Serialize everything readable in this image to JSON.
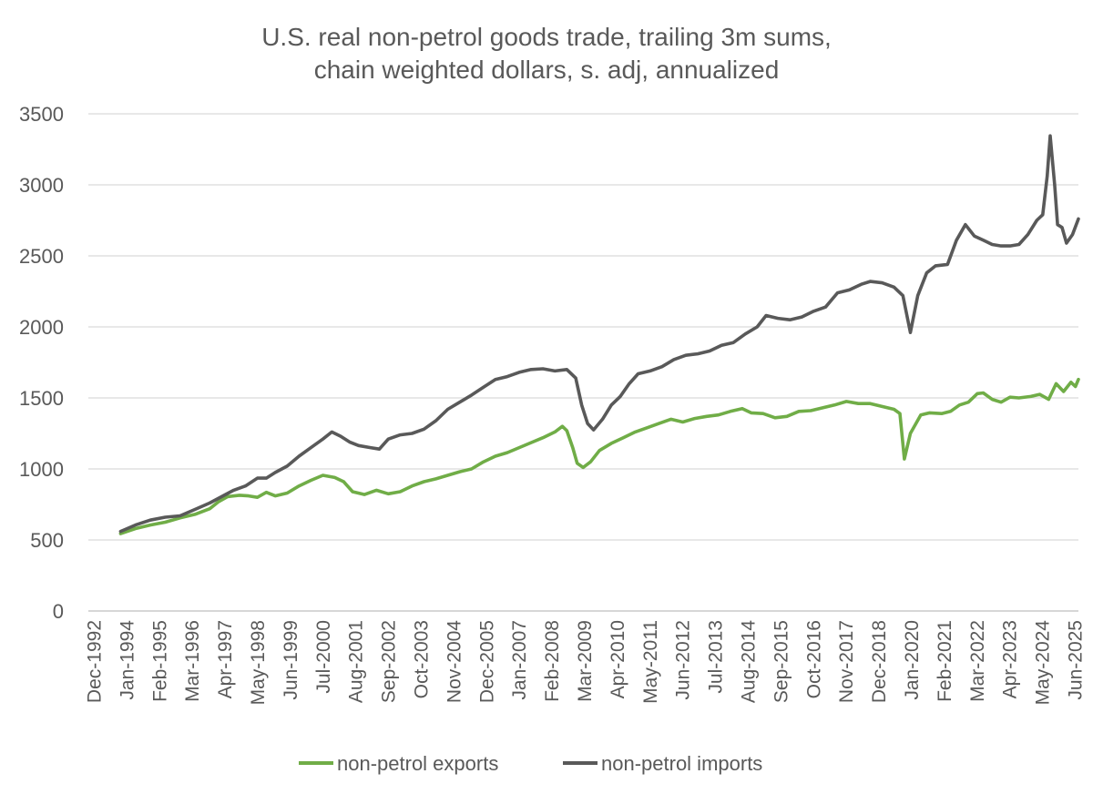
{
  "chart_data": {
    "type": "line",
    "title_lines": [
      "U.S. real non-petrol goods trade, trailing 3m sums,",
      "chain weighted dollars, s. adj, annualized"
    ],
    "xlabel": "",
    "ylabel": "",
    "ylim": [
      0,
      3500
    ],
    "yticks": [
      0,
      500,
      1000,
      1500,
      2000,
      2500,
      3000,
      3500
    ],
    "grid": true,
    "legend_position": "bottom",
    "x_tick_labels": [
      "Dec-1992",
      "Jan-1994",
      "Feb-1995",
      "Mar-1996",
      "Apr-1997",
      "May-1998",
      "Jun-1999",
      "Jul-2000",
      "Aug-2001",
      "Sep-2002",
      "Oct-2003",
      "Nov-2004",
      "Dec-2005",
      "Jan-2007",
      "Feb-2008",
      "Mar-2009",
      "Apr-2010",
      "May-2011",
      "Jun-2012",
      "Jul-2013",
      "Aug-2014",
      "Sep-2015",
      "Oct-2016",
      "Nov-2017",
      "Dec-2018",
      "Jan-2020",
      "Feb-2021",
      "Mar-2022",
      "Apr-2023",
      "May-2024",
      "Jun-2025"
    ],
    "x_range_years": [
      1992.917,
      2026.2
    ],
    "series": [
      {
        "name": "non-petrol exports",
        "color": "#70ad47",
        "points": [
          [
            1994.0,
            545
          ],
          [
            1994.5,
            580
          ],
          [
            1995.0,
            605
          ],
          [
            1995.5,
            625
          ],
          [
            1996.0,
            655
          ],
          [
            1996.5,
            680
          ],
          [
            1997.0,
            720
          ],
          [
            1997.3,
            770
          ],
          [
            1997.6,
            805
          ],
          [
            1998.0,
            815
          ],
          [
            1998.3,
            810
          ],
          [
            1998.6,
            800
          ],
          [
            1998.9,
            835
          ],
          [
            1999.2,
            810
          ],
          [
            1999.6,
            830
          ],
          [
            2000.0,
            880
          ],
          [
            2000.4,
            920
          ],
          [
            2000.8,
            955
          ],
          [
            2001.2,
            940
          ],
          [
            2001.5,
            910
          ],
          [
            2001.8,
            840
          ],
          [
            2002.2,
            820
          ],
          [
            2002.6,
            850
          ],
          [
            2003.0,
            825
          ],
          [
            2003.4,
            840
          ],
          [
            2003.8,
            880
          ],
          [
            2004.2,
            910
          ],
          [
            2004.6,
            930
          ],
          [
            2005.0,
            955
          ],
          [
            2005.4,
            980
          ],
          [
            2005.8,
            1000
          ],
          [
            2006.2,
            1050
          ],
          [
            2006.6,
            1090
          ],
          [
            2007.0,
            1115
          ],
          [
            2007.4,
            1150
          ],
          [
            2007.8,
            1185
          ],
          [
            2008.2,
            1220
          ],
          [
            2008.6,
            1260
          ],
          [
            2008.85,
            1300
          ],
          [
            2009.0,
            1270
          ],
          [
            2009.2,
            1150
          ],
          [
            2009.35,
            1040
          ],
          [
            2009.55,
            1010
          ],
          [
            2009.8,
            1050
          ],
          [
            2010.1,
            1130
          ],
          [
            2010.5,
            1180
          ],
          [
            2010.9,
            1220
          ],
          [
            2011.3,
            1260
          ],
          [
            2011.7,
            1290
          ],
          [
            2012.1,
            1320
          ],
          [
            2012.5,
            1350
          ],
          [
            2012.9,
            1330
          ],
          [
            2013.3,
            1355
          ],
          [
            2013.7,
            1370
          ],
          [
            2014.1,
            1380
          ],
          [
            2014.5,
            1405
          ],
          [
            2014.9,
            1425
          ],
          [
            2015.2,
            1395
          ],
          [
            2015.6,
            1390
          ],
          [
            2016.0,
            1360
          ],
          [
            2016.4,
            1370
          ],
          [
            2016.8,
            1405
          ],
          [
            2017.2,
            1410
          ],
          [
            2017.6,
            1430
          ],
          [
            2018.0,
            1450
          ],
          [
            2018.4,
            1475
          ],
          [
            2018.8,
            1460
          ],
          [
            2019.2,
            1460
          ],
          [
            2019.6,
            1440
          ],
          [
            2020.0,
            1420
          ],
          [
            2020.2,
            1390
          ],
          [
            2020.35,
            1070
          ],
          [
            2020.55,
            1250
          ],
          [
            2020.9,
            1380
          ],
          [
            2021.2,
            1395
          ],
          [
            2021.6,
            1390
          ],
          [
            2021.9,
            1405
          ],
          [
            2022.2,
            1450
          ],
          [
            2022.5,
            1470
          ],
          [
            2022.8,
            1530
          ],
          [
            2023.0,
            1535
          ],
          [
            2023.3,
            1490
          ],
          [
            2023.6,
            1470
          ],
          [
            2023.9,
            1505
          ],
          [
            2024.2,
            1500
          ],
          [
            2024.6,
            1510
          ],
          [
            2024.9,
            1525
          ],
          [
            2025.2,
            1490
          ],
          [
            2025.45,
            1600
          ],
          [
            2025.7,
            1545
          ],
          [
            2025.95,
            1610
          ],
          [
            2026.1,
            1580
          ],
          [
            2026.2,
            1630
          ]
        ]
      },
      {
        "name": "non-petrol imports",
        "color": "#595959",
        "points": [
          [
            1994.0,
            560
          ],
          [
            1994.5,
            605
          ],
          [
            1995.0,
            640
          ],
          [
            1995.5,
            660
          ],
          [
            1996.0,
            670
          ],
          [
            1996.5,
            715
          ],
          [
            1997.0,
            760
          ],
          [
            1997.4,
            805
          ],
          [
            1997.8,
            850
          ],
          [
            1998.2,
            880
          ],
          [
            1998.6,
            935
          ],
          [
            1998.9,
            935
          ],
          [
            1999.2,
            975
          ],
          [
            1999.6,
            1020
          ],
          [
            2000.0,
            1090
          ],
          [
            2000.4,
            1150
          ],
          [
            2000.8,
            1210
          ],
          [
            2001.1,
            1260
          ],
          [
            2001.4,
            1230
          ],
          [
            2001.7,
            1190
          ],
          [
            2002.0,
            1165
          ],
          [
            2002.4,
            1150
          ],
          [
            2002.7,
            1140
          ],
          [
            2003.0,
            1210
          ],
          [
            2003.4,
            1240
          ],
          [
            2003.8,
            1250
          ],
          [
            2004.2,
            1280
          ],
          [
            2004.6,
            1340
          ],
          [
            2005.0,
            1420
          ],
          [
            2005.4,
            1470
          ],
          [
            2005.8,
            1520
          ],
          [
            2006.2,
            1575
          ],
          [
            2006.6,
            1630
          ],
          [
            2007.0,
            1650
          ],
          [
            2007.4,
            1680
          ],
          [
            2007.8,
            1700
          ],
          [
            2008.2,
            1705
          ],
          [
            2008.6,
            1690
          ],
          [
            2009.0,
            1700
          ],
          [
            2009.3,
            1640
          ],
          [
            2009.5,
            1450
          ],
          [
            2009.7,
            1320
          ],
          [
            2009.9,
            1275
          ],
          [
            2010.2,
            1350
          ],
          [
            2010.5,
            1450
          ],
          [
            2010.8,
            1510
          ],
          [
            2011.1,
            1600
          ],
          [
            2011.4,
            1670
          ],
          [
            2011.8,
            1690
          ],
          [
            2012.2,
            1720
          ],
          [
            2012.6,
            1770
          ],
          [
            2013.0,
            1800
          ],
          [
            2013.4,
            1810
          ],
          [
            2013.8,
            1830
          ],
          [
            2014.2,
            1870
          ],
          [
            2014.6,
            1890
          ],
          [
            2015.0,
            1950
          ],
          [
            2015.4,
            2000
          ],
          [
            2015.7,
            2080
          ],
          [
            2016.1,
            2060
          ],
          [
            2016.5,
            2050
          ],
          [
            2016.9,
            2070
          ],
          [
            2017.3,
            2110
          ],
          [
            2017.7,
            2140
          ],
          [
            2018.1,
            2240
          ],
          [
            2018.5,
            2260
          ],
          [
            2018.9,
            2300
          ],
          [
            2019.2,
            2320
          ],
          [
            2019.6,
            2310
          ],
          [
            2020.0,
            2280
          ],
          [
            2020.3,
            2220
          ],
          [
            2020.55,
            1960
          ],
          [
            2020.8,
            2220
          ],
          [
            2021.1,
            2380
          ],
          [
            2021.4,
            2430
          ],
          [
            2021.8,
            2440
          ],
          [
            2022.1,
            2610
          ],
          [
            2022.4,
            2720
          ],
          [
            2022.7,
            2640
          ],
          [
            2023.0,
            2610
          ],
          [
            2023.3,
            2580
          ],
          [
            2023.6,
            2570
          ],
          [
            2023.9,
            2570
          ],
          [
            2024.2,
            2580
          ],
          [
            2024.5,
            2650
          ],
          [
            2024.8,
            2750
          ],
          [
            2025.0,
            2790
          ],
          [
            2025.15,
            3060
          ],
          [
            2025.25,
            3345
          ],
          [
            2025.4,
            3000
          ],
          [
            2025.5,
            2720
          ],
          [
            2025.65,
            2700
          ],
          [
            2025.8,
            2590
          ],
          [
            2026.0,
            2650
          ],
          [
            2026.2,
            2760
          ]
        ]
      }
    ]
  }
}
